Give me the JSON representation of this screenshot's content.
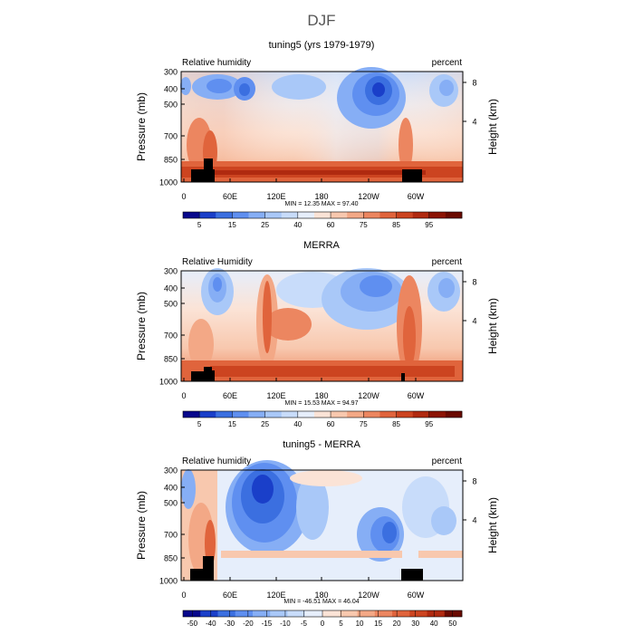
{
  "page_title": "DJF",
  "chart_data": [
    {
      "type": "heatmap",
      "title": "tuning5 (yrs 1979-1979)",
      "left_label": "Relative humidity",
      "right_label": "percent",
      "ylabel": "Pressure (mb)",
      "ylabel_right": "Height (km)",
      "x_ticks": [
        "0",
        "60E",
        "120E",
        "180",
        "120W",
        "60W"
      ],
      "y_ticks": [
        "300",
        "400",
        "500",
        "700",
        "850",
        "1000"
      ],
      "y_right_ticks": [
        "8",
        "4"
      ],
      "stats": "MIN =   12.35   MAX =   97.40",
      "colorbar": {
        "labels": [
          "5",
          "15",
          "25",
          "40",
          "60",
          "75",
          "85",
          "95"
        ],
        "colors": [
          "#08088c",
          "#1a3fc9",
          "#3b6fe0",
          "#5f8ff0",
          "#86aef5",
          "#a9c8f8",
          "#c8dcfa",
          "#e6eefb",
          "#fbe3d6",
          "#f8c8ae",
          "#f3a886",
          "#ec8660",
          "#e0643c",
          "#cc4420",
          "#b02a10",
          "#8c1404",
          "#6a0a00"
        ]
      }
    },
    {
      "type": "heatmap",
      "title": "MERRA",
      "left_label": "Relative Humidity",
      "right_label": "percent",
      "ylabel": "Pressure (mb)",
      "ylabel_right": "Height (km)",
      "x_ticks": [
        "0",
        "60E",
        "120E",
        "180",
        "120W",
        "60W"
      ],
      "y_ticks": [
        "300",
        "400",
        "500",
        "700",
        "850",
        "1000"
      ],
      "y_right_ticks": [
        "8",
        "4"
      ],
      "stats": "MIN =   15.53   MAX =   94.97",
      "colorbar": {
        "labels": [
          "5",
          "15",
          "25",
          "40",
          "60",
          "75",
          "85",
          "95"
        ],
        "colors": [
          "#08088c",
          "#1a3fc9",
          "#3b6fe0",
          "#5f8ff0",
          "#86aef5",
          "#a9c8f8",
          "#c8dcfa",
          "#e6eefb",
          "#fbe3d6",
          "#f8c8ae",
          "#f3a886",
          "#ec8660",
          "#e0643c",
          "#cc4420",
          "#b02a10",
          "#8c1404",
          "#6a0a00"
        ]
      }
    },
    {
      "type": "heatmap",
      "title": "tuning5 - MERRA",
      "left_label": "Relative humidity",
      "right_label": "percent",
      "ylabel": "Pressure (mb)",
      "ylabel_right": "Height (km)",
      "x_ticks": [
        "0",
        "60E",
        "120E",
        "180",
        "120W",
        "60W"
      ],
      "y_ticks": [
        "300",
        "400",
        "500",
        "700",
        "850",
        "1000"
      ],
      "y_right_ticks": [
        "8",
        "4"
      ],
      "stats": "MIN =  -46.51   MAX =   46.04",
      "colorbar": {
        "labels": [
          "-50",
          "-40",
          "-30",
          "-20",
          "-15",
          "-10",
          "-5",
          "0",
          "5",
          "10",
          "15",
          "20",
          "30",
          "40",
          "50"
        ],
        "colors": [
          "#08088c",
          "#1a3fc9",
          "#3b6fe0",
          "#5f8ff0",
          "#86aef5",
          "#a9c8f8",
          "#c8dcfa",
          "#e6eefb",
          "#fbe3d6",
          "#f8c8ae",
          "#f3a886",
          "#ec8660",
          "#e0643c",
          "#cc4420",
          "#b02a10",
          "#6a0a00"
        ]
      }
    }
  ]
}
